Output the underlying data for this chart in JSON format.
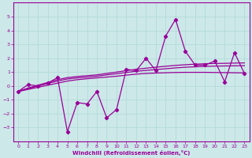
{
  "x": [
    0,
    1,
    2,
    3,
    4,
    5,
    6,
    7,
    8,
    9,
    10,
    11,
    12,
    13,
    14,
    15,
    16,
    17,
    18,
    19,
    20,
    21,
    22,
    23
  ],
  "y_main": [
    -0.4,
    0.1,
    0.0,
    0.2,
    0.6,
    -3.3,
    -1.2,
    -1.3,
    -0.4,
    -2.3,
    -1.7,
    1.2,
    1.1,
    2.0,
    1.1,
    3.6,
    4.8,
    2.5,
    1.5,
    1.5,
    1.8,
    0.3,
    2.4,
    0.9
  ],
  "y_smooth1": [
    -0.4,
    -0.25,
    -0.1,
    0.05,
    0.2,
    0.35,
    0.45,
    0.52,
    0.58,
    0.64,
    0.7,
    0.78,
    0.85,
    0.9,
    0.93,
    0.95,
    0.97,
    0.98,
    0.98,
    0.98,
    0.97,
    0.96,
    0.95,
    0.94
  ],
  "y_smooth2": [
    -0.4,
    -0.15,
    0.05,
    0.25,
    0.45,
    0.6,
    0.68,
    0.74,
    0.8,
    0.9,
    1.0,
    1.1,
    1.2,
    1.28,
    1.35,
    1.42,
    1.48,
    1.53,
    1.57,
    1.6,
    1.62,
    1.63,
    1.65,
    1.66
  ],
  "y_smooth3": [
    -0.4,
    -0.2,
    0.0,
    0.18,
    0.35,
    0.5,
    0.58,
    0.64,
    0.7,
    0.8,
    0.88,
    0.97,
    1.06,
    1.12,
    1.18,
    1.24,
    1.3,
    1.35,
    1.38,
    1.41,
    1.43,
    1.44,
    1.45,
    1.46
  ],
  "line_color": "#990099",
  "bg_color": "#cce8e8",
  "grid_color": "#b0d8d8",
  "xlabel": "Windchill (Refroidissement éolien,°C)",
  "ylim": [
    -4,
    6
  ],
  "xlim": [
    -0.5,
    23.5
  ],
  "yticks": [
    -3,
    -2,
    -1,
    0,
    1,
    2,
    3,
    4,
    5
  ],
  "xticks": [
    0,
    1,
    2,
    3,
    4,
    5,
    6,
    7,
    8,
    9,
    10,
    11,
    12,
    13,
    14,
    15,
    16,
    17,
    18,
    19,
    20,
    21,
    22,
    23
  ]
}
